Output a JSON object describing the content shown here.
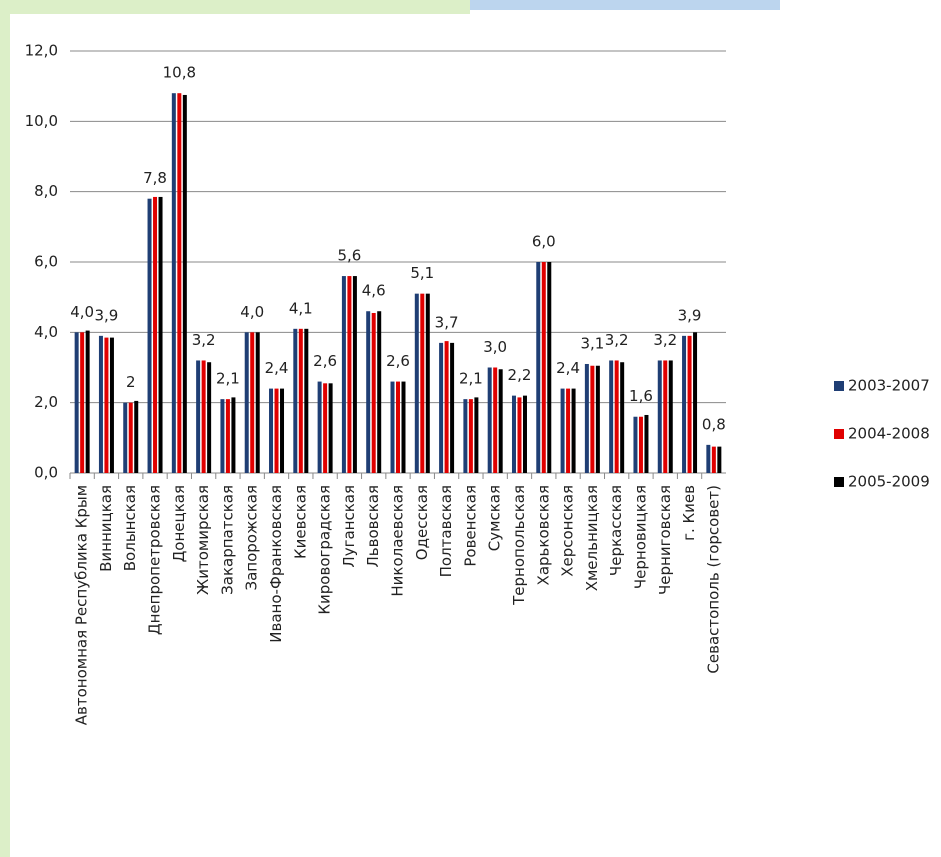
{
  "chart_data": {
    "type": "bar",
    "categories": [
      "Автономная Республика Крым",
      "Винницкая",
      "Волынская",
      "Днепропетровская",
      "Донецкая",
      "Житомирская",
      "Закарпатская",
      "Запорожская",
      "Ивано-Франковская",
      "Киевская",
      "Кировоградская",
      "Луганская",
      "Львовская",
      "Николаевская",
      "Одесская",
      "Полтавская",
      "Ровенская",
      "Сумская",
      "Тернопольская",
      "Харьковская",
      "Херсонская",
      "Хмельницкая",
      "Черкасская",
      "Черновицкая",
      "Черниговская",
      "г. Киев",
      "Севастополь (горсовет)"
    ],
    "series": [
      {
        "name": "2003-2007",
        "color": "#1f3e74",
        "values": [
          4.0,
          3.9,
          2.0,
          7.8,
          10.8,
          3.2,
          2.1,
          4.0,
          2.4,
          4.1,
          2.6,
          5.6,
          4.6,
          2.6,
          5.1,
          3.7,
          2.1,
          3.0,
          2.2,
          6.0,
          2.4,
          3.1,
          3.2,
          1.6,
          3.2,
          3.9,
          0.8
        ],
        "value_labels": [
          "4,0",
          "3,9",
          "2",
          "7,8",
          "10,8",
          "3,2",
          "2,1",
          "4,0",
          "2,4",
          "4,1",
          "2,6",
          "5,6",
          "4,6",
          "2,6",
          "5,1",
          "3,7",
          "2,1",
          "3,0",
          "2,2",
          "6,0",
          "2,4",
          "3,1",
          "3,2",
          "1,6",
          "3,2",
          "3,9",
          "0,8"
        ]
      },
      {
        "name": "2004-2008",
        "color": "#e00000",
        "values": [
          4.0,
          3.85,
          2.0,
          7.85,
          10.8,
          3.2,
          2.1,
          4.0,
          2.4,
          4.1,
          2.55,
          5.6,
          4.55,
          2.6,
          5.1,
          3.75,
          2.1,
          3.0,
          2.15,
          6.0,
          2.4,
          3.05,
          3.2,
          1.6,
          3.2,
          3.9,
          0.75
        ]
      },
      {
        "name": "2005-2009",
        "color": "#000000",
        "values": [
          4.05,
          3.85,
          2.05,
          7.85,
          10.75,
          3.15,
          2.15,
          4.0,
          2.4,
          4.1,
          2.55,
          5.6,
          4.6,
          2.6,
          5.1,
          3.7,
          2.15,
          2.95,
          2.2,
          6.0,
          2.4,
          3.05,
          3.15,
          1.65,
          3.2,
          4.0,
          0.75
        ]
      }
    ],
    "ylim": [
      0,
      12
    ],
    "yticks": [
      {
        "value": 0,
        "label": "0,0"
      },
      {
        "value": 2,
        "label": "2,0"
      },
      {
        "value": 4,
        "label": "4,0"
      },
      {
        "value": 6,
        "label": "6,0"
      },
      {
        "value": 8,
        "label": "8,0"
      },
      {
        "value": 10,
        "label": "10,0"
      },
      {
        "value": 12,
        "label": "12,0"
      }
    ],
    "grid": true
  }
}
